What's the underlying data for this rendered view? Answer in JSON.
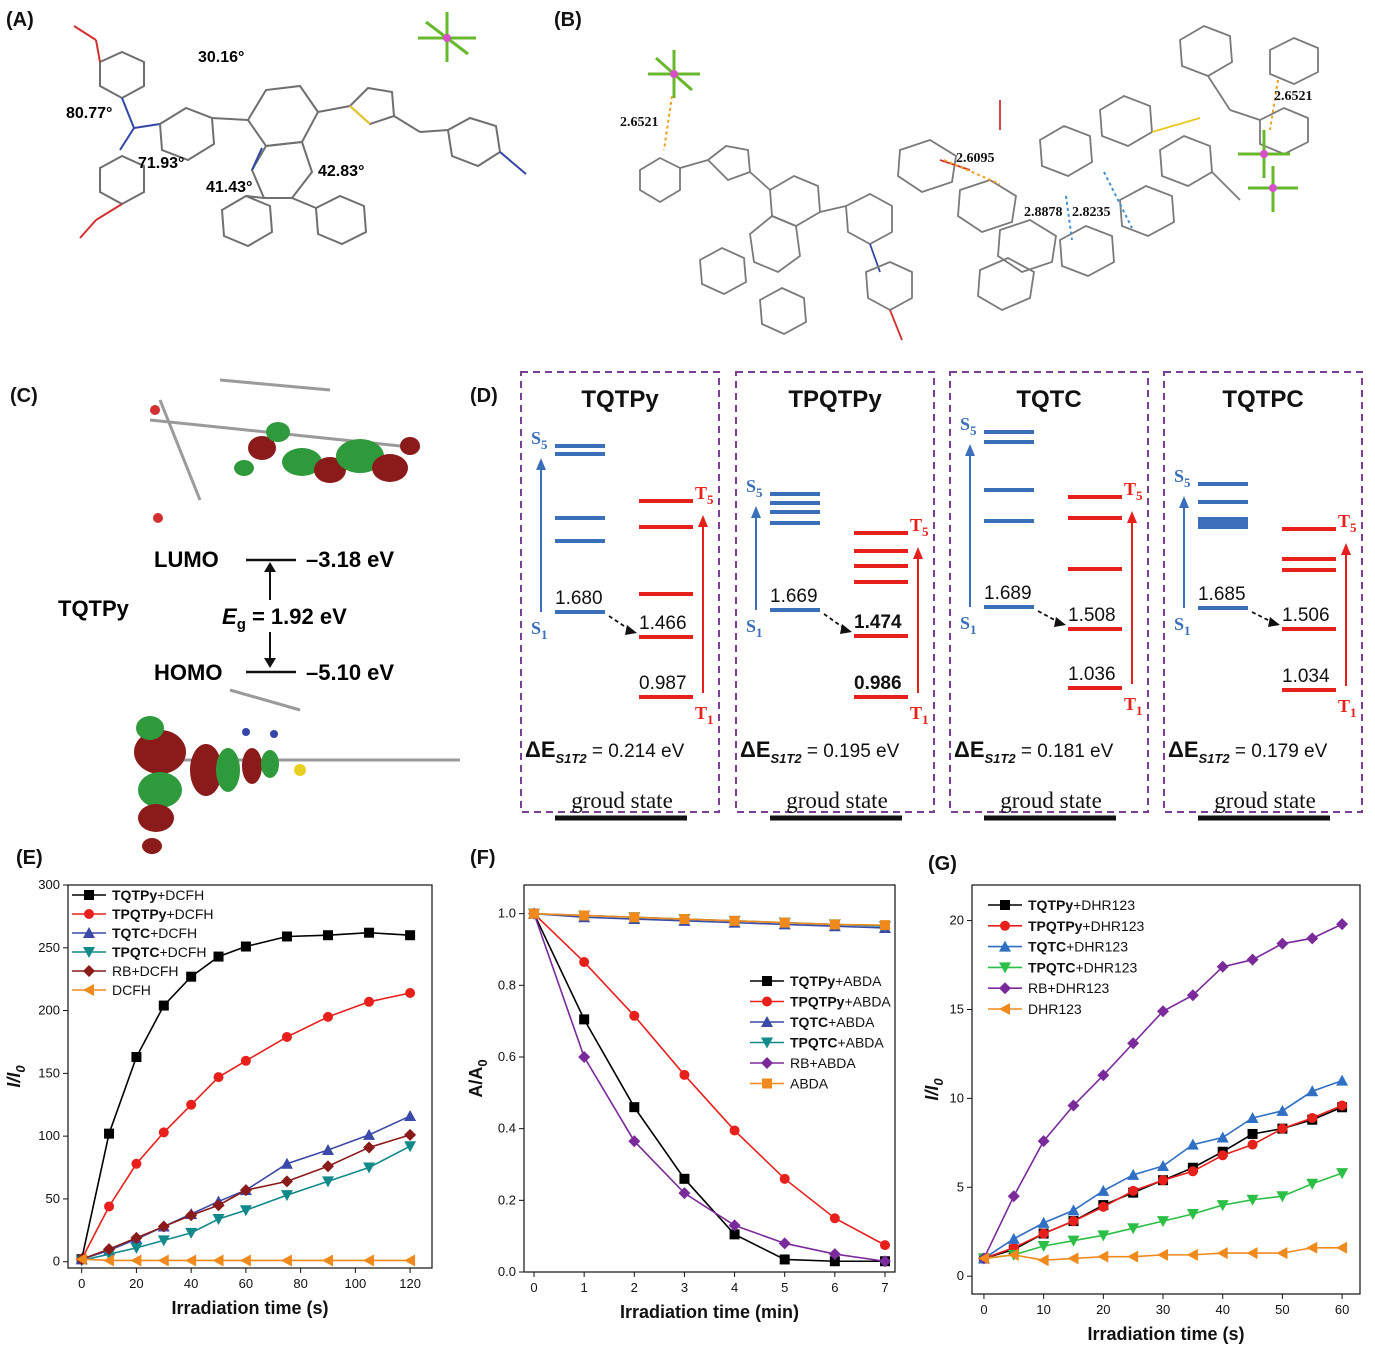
{
  "panels": {
    "a": "(A)",
    "b": "(B)",
    "c": "(C)",
    "d": "(D)",
    "e": "(E)",
    "f": "(F)",
    "g": "(G)"
  },
  "panelA": {
    "angles": [
      "80.77°",
      "71.93°",
      "30.16°",
      "41.43°",
      "42.83°"
    ]
  },
  "panelB": {
    "distances": [
      "2.6521",
      "2.6521",
      "2.6095",
      "2.8878",
      "2.8235"
    ]
  },
  "panelC": {
    "molecule": "TQTPy",
    "lumo_label": "LUMO",
    "lumo_value": "–3.18 eV",
    "homo_label": "HOMO",
    "homo_value": "–5.10 eV",
    "gap_symbol": "E",
    "gap_sub": "g",
    "gap_value": " = 1.92 eV"
  },
  "panelD": {
    "ground_label": "groud state",
    "delta_prefix": "ΔE",
    "delta_sub": "S1T2",
    "compounds": [
      {
        "name": "TQTPy",
        "s1": "1.680",
        "t2": "1.466",
        "t1": "0.987",
        "delta": " = 0.214 eV"
      },
      {
        "name": "TPQTPy",
        "s1": "1.669",
        "t2": "1.474",
        "t1": "0.986",
        "delta": " = 0.195 eV"
      },
      {
        "name": "TQTC",
        "s1": "1.689",
        "t2": "1.508",
        "t1": "1.036",
        "delta": " = 0.181 eV"
      },
      {
        "name": "TQTPC",
        "s1": "1.685",
        "t2": "1.506",
        "t1": "1.034",
        "delta": " = 0.179 eV"
      }
    ],
    "state_labels": {
      "s5": "S",
      "s1": "S",
      "t5": "T",
      "t1": "T",
      "sub5": "5",
      "sub1": "1"
    }
  },
  "chart_data": [
    {
      "type": "line",
      "panel": "E",
      "xlabel": "Irradiation time (s)",
      "ylabel": "I/I0",
      "xlim": [
        -5,
        128
      ],
      "ylim": [
        -5,
        300
      ],
      "xticks": [
        0,
        20,
        40,
        60,
        80,
        100,
        120
      ],
      "yticks": [
        0,
        50,
        100,
        150,
        200,
        250,
        300
      ],
      "series": [
        {
          "name": "TQTPy+DCFH",
          "bold": "TQTPy",
          "rest": "+DCFH",
          "color": "#000000",
          "marker": "square",
          "x": [
            0,
            10,
            20,
            30,
            40,
            50,
            60,
            75,
            90,
            105,
            120
          ],
          "y": [
            2,
            102,
            163,
            204,
            227,
            243,
            251,
            259,
            260,
            262,
            260
          ]
        },
        {
          "name": "TPQTPy+DCFH",
          "bold": "TPQTPy",
          "rest": "+DCFH",
          "color": "#e8201c",
          "marker": "circle",
          "x": [
            0,
            10,
            20,
            30,
            40,
            50,
            60,
            75,
            90,
            105,
            120
          ],
          "y": [
            2,
            44,
            78,
            103,
            125,
            147,
            160,
            179,
            195,
            207,
            214
          ]
        },
        {
          "name": "TQTC+DCFH",
          "bold": "TQTC",
          "rest": "+DCFH",
          "color": "#3b49a8",
          "marker": "triangle",
          "x": [
            0,
            10,
            20,
            30,
            40,
            50,
            60,
            75,
            90,
            105,
            120
          ],
          "y": [
            2,
            9,
            18,
            28,
            38,
            48,
            57,
            78,
            89,
            101,
            116
          ]
        },
        {
          "name": "TPQTC+DCFH",
          "bold": "TPQTC",
          "rest": "+DCFH",
          "color": "#128a8a",
          "marker": "triangle-down",
          "x": [
            0,
            10,
            20,
            30,
            40,
            50,
            60,
            75,
            90,
            105,
            120
          ],
          "y": [
            1,
            6,
            11,
            17,
            23,
            34,
            41,
            53,
            64,
            75,
            92
          ]
        },
        {
          "name": "RB+DCFH",
          "bold": "",
          "rest": "RB+DCFH",
          "color": "#8b1a1a",
          "marker": "diamond",
          "x": [
            0,
            10,
            20,
            30,
            40,
            50,
            60,
            75,
            90,
            105,
            120
          ],
          "y": [
            2,
            10,
            19,
            28,
            37,
            45,
            57,
            64,
            76,
            91,
            101
          ]
        },
        {
          "name": "DCFH",
          "bold": "",
          "rest": "DCFH",
          "color": "#f08a1c",
          "marker": "triangle-left",
          "x": [
            0,
            10,
            20,
            30,
            40,
            50,
            60,
            75,
            90,
            105,
            120
          ],
          "y": [
            2,
            1,
            1,
            1,
            1,
            1,
            1,
            1,
            1,
            1,
            1
          ]
        }
      ]
    },
    {
      "type": "line",
      "panel": "F",
      "xlabel": "Irradiation time (min)",
      "ylabel": "A/A0",
      "xlim": [
        -0.2,
        7.2
      ],
      "ylim": [
        0,
        1.08
      ],
      "xticks": [
        0,
        1,
        2,
        3,
        4,
        5,
        6,
        7
      ],
      "yticks": [
        0.0,
        0.2,
        0.4,
        0.6,
        0.8,
        1.0
      ],
      "series": [
        {
          "name": "TQTPy+ABDA",
          "bold": "TQTPy",
          "rest": "+ABDA",
          "color": "#000000",
          "marker": "square",
          "x": [
            0,
            1,
            2,
            3,
            4,
            5,
            6,
            7
          ],
          "y": [
            1.0,
            0.705,
            0.46,
            0.26,
            0.105,
            0.035,
            0.03,
            0.03
          ]
        },
        {
          "name": "TPQTPy+ABDA",
          "bold": "TPQTPy",
          "rest": "+ABDA",
          "color": "#e8201c",
          "marker": "circle",
          "x": [
            0,
            1,
            2,
            3,
            4,
            5,
            6,
            7
          ],
          "y": [
            1.0,
            0.865,
            0.715,
            0.55,
            0.395,
            0.26,
            0.15,
            0.075
          ]
        },
        {
          "name": "TQTC+ABDA",
          "bold": "TQTC",
          "rest": "+ABDA",
          "color": "#3b49a8",
          "marker": "triangle",
          "x": [
            0,
            1,
            2,
            3,
            4,
            5,
            6,
            7
          ],
          "y": [
            1.0,
            0.99,
            0.985,
            0.98,
            0.975,
            0.97,
            0.965,
            0.96
          ]
        },
        {
          "name": "TPQTC+ABDA",
          "bold": "TPQTC",
          "rest": "+ABDA",
          "color": "#128a8a",
          "marker": "triangle-down",
          "x": [
            0,
            1,
            2,
            3,
            4,
            5,
            6,
            7
          ],
          "y": [
            1.0,
            0.995,
            0.99,
            0.985,
            0.98,
            0.975,
            0.97,
            0.965
          ]
        },
        {
          "name": "RB+ABDA",
          "bold": "",
          "rest": "RB+ABDA",
          "color": "#7b2a9c",
          "marker": "diamond",
          "x": [
            0,
            1,
            2,
            3,
            4,
            5,
            6,
            7
          ],
          "y": [
            1.0,
            0.6,
            0.365,
            0.22,
            0.13,
            0.08,
            0.05,
            0.03
          ]
        },
        {
          "name": "ABDA",
          "bold": "",
          "rest": "ABDA",
          "color": "#f08a1c",
          "marker": "square",
          "x": [
            0,
            1,
            2,
            3,
            4,
            5,
            6,
            7
          ],
          "y": [
            1.0,
            0.995,
            0.99,
            0.985,
            0.98,
            0.975,
            0.97,
            0.968
          ]
        }
      ]
    },
    {
      "type": "line",
      "panel": "G",
      "xlabel": "Irradiation time (s)",
      "ylabel": "I/I0",
      "xlim": [
        -2,
        63
      ],
      "ylim": [
        -1,
        22
      ],
      "xticks": [
        0,
        10,
        20,
        30,
        40,
        50,
        60
      ],
      "yticks": [
        0,
        5,
        10,
        15,
        20
      ],
      "series": [
        {
          "name": "TQTPy+DHR123",
          "bold": "TQTPy",
          "rest": "+DHR123",
          "color": "#000000",
          "marker": "square",
          "x": [
            0,
            5,
            10,
            15,
            20,
            25,
            30,
            35,
            40,
            45,
            50,
            55,
            60
          ],
          "y": [
            1,
            1.5,
            2.4,
            3.1,
            4.0,
            4.7,
            5.4,
            6.1,
            7.0,
            8.0,
            8.3,
            8.8,
            9.5
          ]
        },
        {
          "name": "TPQTPy+DHR123",
          "bold": "TPQTPy",
          "rest": "+DHR123",
          "color": "#e8201c",
          "marker": "circle",
          "x": [
            0,
            5,
            10,
            15,
            20,
            25,
            30,
            35,
            40,
            45,
            50,
            55,
            60
          ],
          "y": [
            1,
            1.6,
            2.4,
            3.1,
            3.9,
            4.8,
            5.4,
            5.9,
            6.8,
            7.4,
            8.3,
            8.9,
            9.6
          ]
        },
        {
          "name": "TQTC+DHR123",
          "bold": "TQTC",
          "rest": "+DHR123",
          "color": "#2f6fc4",
          "marker": "triangle",
          "x": [
            0,
            5,
            10,
            15,
            20,
            25,
            30,
            35,
            40,
            45,
            50,
            55,
            60
          ],
          "y": [
            1,
            2.1,
            3.0,
            3.7,
            4.8,
            5.7,
            6.2,
            7.4,
            7.8,
            8.9,
            9.3,
            10.4,
            11.0
          ]
        },
        {
          "name": "TPQTC+DHR123",
          "bold": "TPQTC",
          "rest": "+DHR123",
          "color": "#2cbf45",
          "marker": "triangle-down",
          "x": [
            0,
            5,
            10,
            15,
            20,
            25,
            30,
            35,
            40,
            45,
            50,
            55,
            60
          ],
          "y": [
            1,
            1.2,
            1.7,
            2.0,
            2.3,
            2.7,
            3.1,
            3.5,
            4.0,
            4.3,
            4.5,
            5.2,
            5.8
          ]
        },
        {
          "name": "RB+DHR123",
          "bold": "",
          "rest": "RB+DHR123",
          "color": "#7b2a9c",
          "marker": "diamond",
          "x": [
            0,
            5,
            10,
            15,
            20,
            25,
            30,
            35,
            40,
            45,
            50,
            55,
            60
          ],
          "y": [
            1,
            4.5,
            7.6,
            9.6,
            11.3,
            13.1,
            14.9,
            15.8,
            17.4,
            17.8,
            18.7,
            19.0,
            19.8
          ]
        },
        {
          "name": "DHR123",
          "bold": "",
          "rest": "DHR123",
          "color": "#f08a1c",
          "marker": "triangle-left",
          "x": [
            0,
            5,
            10,
            15,
            20,
            25,
            30,
            35,
            40,
            45,
            50,
            55,
            60
          ],
          "y": [
            1,
            1.2,
            0.9,
            1.0,
            1.1,
            1.1,
            1.2,
            1.2,
            1.3,
            1.3,
            1.3,
            1.6,
            1.6
          ]
        }
      ]
    }
  ]
}
